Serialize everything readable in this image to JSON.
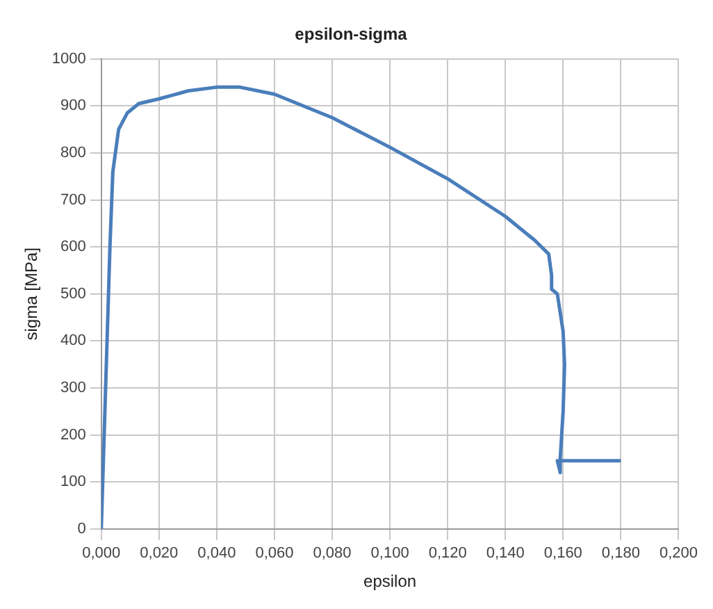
{
  "chart_data": {
    "type": "line",
    "title": "epsilon-sigma",
    "xlabel": "epsilon",
    "ylabel": "sigma [MPa]",
    "series": [
      {
        "color": "#4a7ebb",
        "x": [
          0,
          0.0015,
          0.003,
          0.004,
          0.006,
          0.009,
          0.013,
          0.02,
          0.03,
          0.04,
          0.048,
          0.06,
          0.08,
          0.1,
          0.12,
          0.14,
          0.15,
          0.155,
          0.156,
          0.156,
          0.158,
          0.16,
          0.1605,
          0.16,
          0.159,
          0.159,
          0.158,
          0.18
        ],
        "values": [
          0,
          300,
          600,
          760,
          850,
          885,
          905,
          915,
          932,
          940,
          940,
          925,
          875,
          812,
          745,
          665,
          615,
          585,
          540,
          510,
          500,
          420,
          350,
          250,
          150,
          120,
          145,
          145
        ]
      }
    ],
    "xlim": [
      0,
      0.2
    ],
    "xticks": [
      {
        "value": 0,
        "label": "0,000"
      },
      {
        "value": 0.02,
        "label": "0,020"
      },
      {
        "value": 0.04,
        "label": "0,040"
      },
      {
        "value": 0.06,
        "label": "0,060"
      },
      {
        "value": 0.08,
        "label": "0,080"
      },
      {
        "value": 0.1,
        "label": "0,100"
      },
      {
        "value": 0.12,
        "label": "0,120"
      },
      {
        "value": 0.14,
        "label": "0,140"
      },
      {
        "value": 0.16,
        "label": "0,160"
      },
      {
        "value": 0.18,
        "label": "0,180"
      },
      {
        "value": 0.2,
        "label": "0,200"
      }
    ],
    "ylim": [
      0,
      1000
    ],
    "yticks": [
      0,
      100,
      200,
      300,
      400,
      500,
      600,
      700,
      800,
      900,
      1000
    ],
    "grid": true,
    "marker": "none",
    "line_style": "solid"
  }
}
